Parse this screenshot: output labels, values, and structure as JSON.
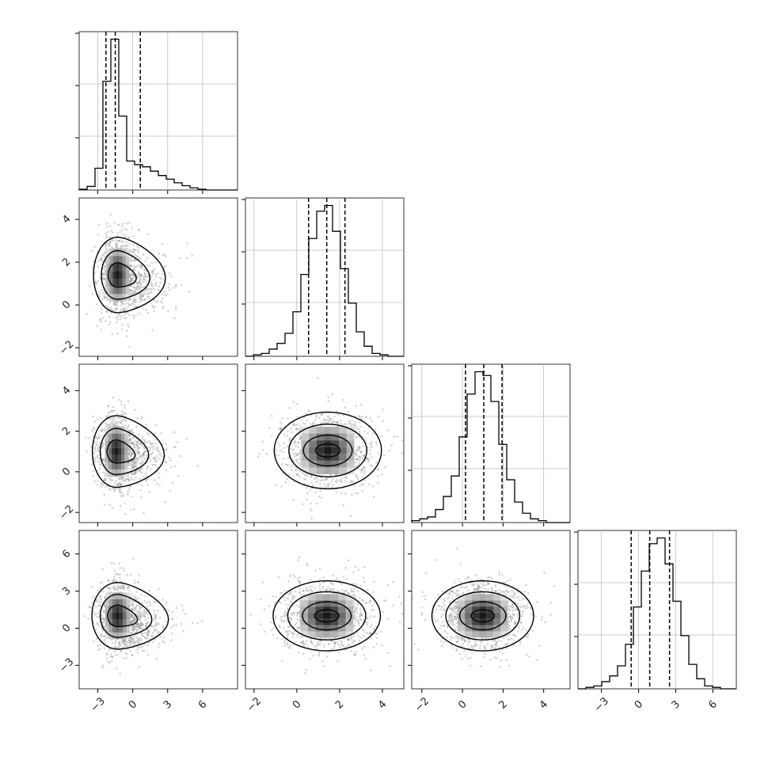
{
  "figure": {
    "background": "#ffffff",
    "grid_color": "#bcbcbc",
    "line_color": "#000000",
    "grid": true
  },
  "chart_data": {
    "type": "corner",
    "variables": 4,
    "var_labels": [
      "",
      "",
      "",
      ""
    ],
    "ranges": [
      [
        -4.6,
        9.0
      ],
      [
        -2.4,
        5.0
      ],
      [
        -2.5,
        5.3
      ],
      [
        -4.9,
        7.9
      ]
    ],
    "ticks": [
      {
        "values": [
          -3,
          0,
          3,
          6
        ],
        "labels": [
          "−3",
          "0",
          "3",
          "6"
        ]
      },
      {
        "values": [
          -2,
          0,
          2,
          4
        ],
        "labels": [
          "−2",
          "0",
          "2",
          "4"
        ]
      },
      {
        "values": [
          -2,
          0,
          2,
          4
        ],
        "labels": [
          "−2",
          "0",
          "2",
          "4"
        ]
      },
      {
        "values": [
          -3,
          0,
          3,
          6
        ],
        "labels": [
          "−3",
          "0",
          "3",
          "6"
        ]
      }
    ],
    "histograms": [
      {
        "var": 0,
        "bin_edges": [
          -4.6,
          -3.92,
          -3.24,
          -2.56,
          -1.88,
          -1.2,
          -0.52,
          0.16,
          0.84,
          1.52,
          2.2,
          2.88,
          3.56,
          4.24,
          4.92,
          5.6,
          6.28,
          6.96,
          7.64,
          8.32,
          9.0
        ],
        "counts": [
          1,
          5,
          30,
          150,
          208,
          102,
          40,
          35,
          32,
          26,
          20,
          15,
          10,
          6,
          3,
          1,
          0,
          0,
          0,
          0
        ],
        "quantiles": [
          -2.3,
          -1.5,
          0.65
        ]
      },
      {
        "var": 1,
        "bin_edges": [
          -2.4,
          -2.03,
          -1.66,
          -1.29,
          -0.92,
          -0.55,
          -0.18,
          0.19,
          0.56,
          0.93,
          1.3,
          1.67,
          2.04,
          2.41,
          2.78,
          3.15,
          3.52,
          3.89,
          4.26,
          4.63,
          5.0
        ],
        "counts": [
          0,
          1,
          2,
          5,
          9,
          16,
          31,
          57,
          82,
          101,
          105,
          87,
          61,
          37,
          17,
          7,
          2,
          1,
          0,
          0
        ],
        "quantiles": [
          0.55,
          1.4,
          2.25
        ]
      },
      {
        "var": 2,
        "bin_edges": [
          -2.5,
          -2.11,
          -1.72,
          -1.33,
          -0.94,
          -0.55,
          -0.16,
          0.23,
          0.62,
          1.01,
          1.4,
          1.79,
          2.18,
          2.57,
          2.96,
          3.35,
          3.74,
          4.13,
          4.52,
          4.91,
          5.3
        ],
        "counts": [
          1,
          2,
          3,
          7,
          14,
          25,
          46,
          69,
          81,
          79,
          65,
          42,
          23,
          11,
          5,
          2,
          1,
          0,
          0,
          0
        ],
        "quantiles": [
          0.15,
          1.05,
          1.95
        ]
      },
      {
        "var": 3,
        "bin_edges": [
          -4.9,
          -4.26,
          -3.62,
          -2.98,
          -2.34,
          -1.7,
          -1.06,
          -0.42,
          0.22,
          0.86,
          1.5,
          2.14,
          2.78,
          3.42,
          4.06,
          4.7,
          5.34,
          5.98,
          6.62,
          7.26,
          7.9
        ],
        "counts": [
          0,
          1,
          2,
          5,
          9,
          16,
          31,
          57,
          82,
          101,
          105,
          87,
          61,
          37,
          17,
          7,
          2,
          1,
          0,
          0
        ],
        "quantiles": [
          -0.6,
          0.9,
          2.5
        ]
      }
    ],
    "pairs": [
      {
        "x": 0,
        "y": 1,
        "center": [
          -1.3,
          1.4
        ],
        "spread": [
          0.75,
          0.95
        ],
        "tail": [
          1.7,
          -0.3
        ],
        "contours": [
          [
            0.9,
            0.5
          ],
          [
            1.55,
            1.0
          ],
          [
            2.3,
            1.55
          ]
        ]
      },
      {
        "x": 0,
        "y": 2,
        "center": [
          -1.4,
          1.0
        ],
        "spread": [
          0.75,
          0.95
        ],
        "tail": [
          1.7,
          -0.35
        ],
        "contours": [
          [
            0.9,
            0.5
          ],
          [
            1.55,
            1.0
          ],
          [
            2.3,
            1.55
          ]
        ]
      },
      {
        "x": 0,
        "y": 3,
        "center": [
          -1.3,
          1.0
        ],
        "spread": [
          0.8,
          1.45
        ],
        "tail": [
          1.8,
          -0.6
        ],
        "contours": [
          [
            0.9,
            0.5
          ],
          [
            1.55,
            1.0
          ],
          [
            2.3,
            1.55
          ]
        ]
      },
      {
        "x": 1,
        "y": 2,
        "center": [
          1.45,
          1.05
        ],
        "spread": [
          0.95,
          0.9
        ],
        "tail": [
          0,
          0
        ],
        "contours": [
          [
            0.5,
            0.3
          ],
          [
            1.0,
            0.7
          ],
          [
            1.6,
            1.2
          ],
          [
            2.2,
            1.75
          ]
        ]
      },
      {
        "x": 1,
        "y": 3,
        "center": [
          1.4,
          1.0
        ],
        "spread": [
          0.95,
          1.35
        ],
        "tail": [
          0,
          0
        ],
        "contours": [
          [
            0.5,
            0.3
          ],
          [
            1.0,
            0.7
          ],
          [
            1.6,
            1.2
          ],
          [
            2.2,
            1.75
          ]
        ]
      },
      {
        "x": 2,
        "y": 3,
        "center": [
          1.0,
          1.0
        ],
        "spread": [
          0.95,
          1.35
        ],
        "tail": [
          0,
          0
        ],
        "contours": [
          [
            0.5,
            0.3
          ],
          [
            1.0,
            0.7
          ],
          [
            1.6,
            1.2
          ],
          [
            2.2,
            1.75
          ]
        ]
      }
    ]
  }
}
